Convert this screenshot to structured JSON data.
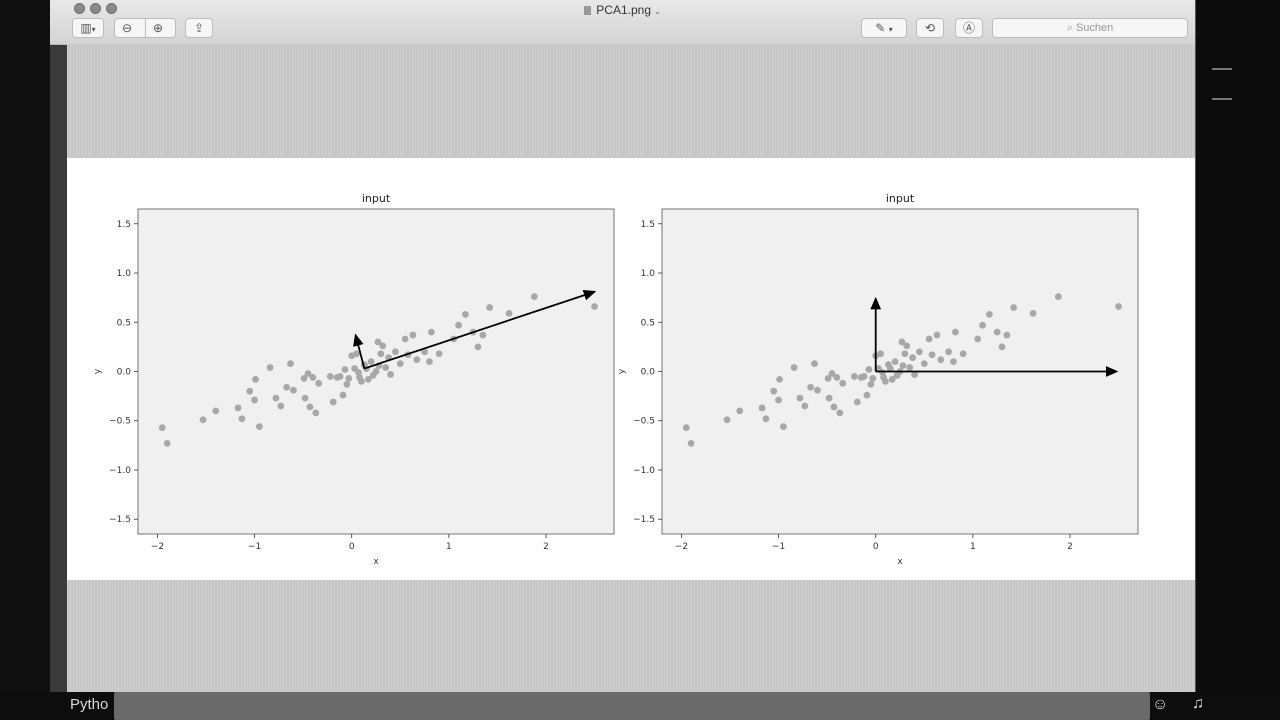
{
  "window": {
    "title": "PCA1.png"
  },
  "search": {
    "placeholder": "Suchen"
  },
  "taskbar": {
    "label": "Pytho"
  },
  "colors": {
    "point": "#a8a8a8",
    "axes_bg": "#f0f0f0",
    "arrow": "#000000"
  },
  "chart_data": [
    {
      "type": "scatter",
      "title": "input",
      "xlabel": "x",
      "ylabel": "y",
      "xlim": [
        -2.2,
        2.7
      ],
      "ylim": [
        -1.65,
        1.65
      ],
      "xticks": [
        -2,
        -1,
        0,
        1,
        2
      ],
      "yticks": [
        -1.5,
        -1.0,
        -0.5,
        0.0,
        0.5,
        1.0,
        1.5
      ],
      "grid": false,
      "points": [
        [
          -1.95,
          -0.57
        ],
        [
          -1.9,
          -0.73
        ],
        [
          -1.53,
          -0.49
        ],
        [
          -1.4,
          -0.4
        ],
        [
          -1.17,
          -0.37
        ],
        [
          -1.13,
          -0.48
        ],
        [
          -1.05,
          -0.2
        ],
        [
          -1.0,
          -0.29
        ],
        [
          -0.99,
          -0.08
        ],
        [
          -0.95,
          -0.56
        ],
        [
          -0.84,
          0.04
        ],
        [
          -0.78,
          -0.27
        ],
        [
          -0.73,
          -0.35
        ],
        [
          -0.67,
          -0.16
        ],
        [
          -0.63,
          0.08
        ],
        [
          -0.6,
          -0.19
        ],
        [
          -0.49,
          -0.07
        ],
        [
          -0.48,
          -0.27
        ],
        [
          -0.45,
          -0.02
        ],
        [
          -0.43,
          -0.36
        ],
        [
          -0.4,
          -0.06
        ],
        [
          -0.37,
          -0.42
        ],
        [
          -0.34,
          -0.12
        ],
        [
          -0.22,
          -0.05
        ],
        [
          -0.19,
          -0.31
        ],
        [
          -0.15,
          -0.06
        ],
        [
          -0.12,
          -0.05
        ],
        [
          -0.09,
          -0.24
        ],
        [
          -0.07,
          0.02
        ],
        [
          -0.05,
          -0.13
        ],
        [
          -0.03,
          -0.07
        ],
        [
          0.0,
          0.16
        ],
        [
          0.03,
          0.03
        ],
        [
          0.05,
          0.18
        ],
        [
          0.07,
          -0.01
        ],
        [
          0.08,
          -0.06
        ],
        [
          0.1,
          -0.1
        ],
        [
          0.13,
          0.07
        ],
        [
          0.15,
          0.03
        ],
        [
          0.17,
          -0.08
        ],
        [
          0.2,
          0.1
        ],
        [
          0.22,
          -0.04
        ],
        [
          0.25,
          0.0
        ],
        [
          0.27,
          0.3
        ],
        [
          0.28,
          0.06
        ],
        [
          0.3,
          0.18
        ],
        [
          0.32,
          0.26
        ],
        [
          0.35,
          0.04
        ],
        [
          0.38,
          0.14
        ],
        [
          0.4,
          -0.03
        ],
        [
          0.45,
          0.2
        ],
        [
          0.5,
          0.08
        ],
        [
          0.55,
          0.33
        ],
        [
          0.58,
          0.17
        ],
        [
          0.63,
          0.37
        ],
        [
          0.67,
          0.12
        ],
        [
          0.75,
          0.2
        ],
        [
          0.8,
          0.1
        ],
        [
          0.82,
          0.4
        ],
        [
          0.9,
          0.18
        ],
        [
          1.05,
          0.33
        ],
        [
          1.1,
          0.47
        ],
        [
          1.17,
          0.58
        ],
        [
          1.25,
          0.4
        ],
        [
          1.3,
          0.25
        ],
        [
          1.35,
          0.37
        ],
        [
          1.42,
          0.65
        ],
        [
          1.62,
          0.59
        ],
        [
          1.88,
          0.76
        ],
        [
          2.5,
          0.66
        ]
      ],
      "arrows": [
        {
          "from": [
            0.13,
            0.03
          ],
          "to": [
            2.5,
            0.81
          ]
        },
        {
          "from": [
            0.13,
            0.03
          ],
          "to": [
            0.04,
            0.37
          ]
        }
      ]
    },
    {
      "type": "scatter",
      "title": "input",
      "xlabel": "x",
      "ylabel": "y",
      "xlim": [
        -2.2,
        2.7
      ],
      "ylim": [
        -1.65,
        1.65
      ],
      "xticks": [
        -2,
        -1,
        0,
        1,
        2
      ],
      "yticks": [
        -1.5,
        -1.0,
        -0.5,
        0.0,
        0.5,
        1.0,
        1.5
      ],
      "grid": false,
      "points": [
        [
          -1.95,
          -0.57
        ],
        [
          -1.9,
          -0.73
        ],
        [
          -1.53,
          -0.49
        ],
        [
          -1.4,
          -0.4
        ],
        [
          -1.17,
          -0.37
        ],
        [
          -1.13,
          -0.48
        ],
        [
          -1.05,
          -0.2
        ],
        [
          -1.0,
          -0.29
        ],
        [
          -0.99,
          -0.08
        ],
        [
          -0.95,
          -0.56
        ],
        [
          -0.84,
          0.04
        ],
        [
          -0.78,
          -0.27
        ],
        [
          -0.73,
          -0.35
        ],
        [
          -0.67,
          -0.16
        ],
        [
          -0.63,
          0.08
        ],
        [
          -0.6,
          -0.19
        ],
        [
          -0.49,
          -0.07
        ],
        [
          -0.48,
          -0.27
        ],
        [
          -0.45,
          -0.02
        ],
        [
          -0.43,
          -0.36
        ],
        [
          -0.4,
          -0.06
        ],
        [
          -0.37,
          -0.42
        ],
        [
          -0.34,
          -0.12
        ],
        [
          -0.22,
          -0.05
        ],
        [
          -0.19,
          -0.31
        ],
        [
          -0.15,
          -0.06
        ],
        [
          -0.12,
          -0.05
        ],
        [
          -0.09,
          -0.24
        ],
        [
          -0.07,
          0.02
        ],
        [
          -0.05,
          -0.13
        ],
        [
          -0.03,
          -0.07
        ],
        [
          0.0,
          0.16
        ],
        [
          0.03,
          0.03
        ],
        [
          0.05,
          0.18
        ],
        [
          0.07,
          -0.01
        ],
        [
          0.08,
          -0.06
        ],
        [
          0.1,
          -0.1
        ],
        [
          0.13,
          0.07
        ],
        [
          0.15,
          0.03
        ],
        [
          0.17,
          -0.08
        ],
        [
          0.2,
          0.1
        ],
        [
          0.22,
          -0.04
        ],
        [
          0.25,
          0.0
        ],
        [
          0.27,
          0.3
        ],
        [
          0.28,
          0.06
        ],
        [
          0.3,
          0.18
        ],
        [
          0.32,
          0.26
        ],
        [
          0.35,
          0.04
        ],
        [
          0.38,
          0.14
        ],
        [
          0.4,
          -0.03
        ],
        [
          0.45,
          0.2
        ],
        [
          0.5,
          0.08
        ],
        [
          0.55,
          0.33
        ],
        [
          0.58,
          0.17
        ],
        [
          0.63,
          0.37
        ],
        [
          0.67,
          0.12
        ],
        [
          0.75,
          0.2
        ],
        [
          0.8,
          0.1
        ],
        [
          0.82,
          0.4
        ],
        [
          0.9,
          0.18
        ],
        [
          1.05,
          0.33
        ],
        [
          1.1,
          0.47
        ],
        [
          1.17,
          0.58
        ],
        [
          1.25,
          0.4
        ],
        [
          1.3,
          0.25
        ],
        [
          1.35,
          0.37
        ],
        [
          1.42,
          0.65
        ],
        [
          1.62,
          0.59
        ],
        [
          1.88,
          0.76
        ],
        [
          2.5,
          0.66
        ]
      ],
      "arrows": [
        {
          "from": [
            0.0,
            0.0
          ],
          "to": [
            2.48,
            0.0
          ]
        },
        {
          "from": [
            0.0,
            0.0
          ],
          "to": [
            0.0,
            0.74
          ]
        }
      ]
    }
  ]
}
